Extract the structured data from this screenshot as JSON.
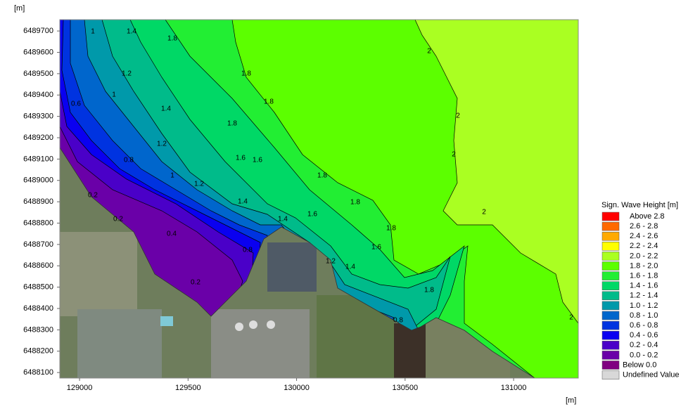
{
  "map": {
    "x_unit": "[m]",
    "y_unit": "[m]",
    "xlim": [
      128909,
      131298
    ],
    "ylim": [
      6488074,
      6489753
    ],
    "xticks": [
      129000,
      129500,
      130000,
      130500,
      131000
    ],
    "yticks": [
      6488100,
      6488200,
      6488300,
      6488400,
      6488500,
      6488600,
      6488700,
      6488800,
      6488900,
      6489000,
      6489100,
      6489200,
      6489300,
      6489400,
      6489500,
      6489600,
      6489700
    ],
    "contour_labels": [
      1,
      1.4,
      1.8,
      1.2,
      1,
      1.4,
      0.6,
      1.2,
      1.8,
      1.8,
      0.8,
      1,
      1.2,
      1.6,
      0.2,
      1.8,
      1.6,
      0.2,
      1.4,
      1.4,
      0.4,
      1.6,
      1.8,
      0.8,
      1.2,
      1.4,
      1.8,
      0.2,
      1.6,
      0.8,
      1.8,
      1.8,
      2,
      2,
      2,
      2,
      2
    ]
  },
  "legend": {
    "title": "Sign. Wave Height [m]",
    "entries": [
      {
        "label": "Above 2.8",
        "color": "#ff0000"
      },
      {
        "label": "2.6 - 2.8",
        "color": "#ff6a00"
      },
      {
        "label": "2.4 - 2.6",
        "color": "#ffaa00"
      },
      {
        "label": "2.2 - 2.4",
        "color": "#ffff00"
      },
      {
        "label": "2.0 - 2.2",
        "color": "#aaff22"
      },
      {
        "label": "1.8 - 2.0",
        "color": "#5cff00"
      },
      {
        "label": "1.6 - 1.8",
        "color": "#22ee33"
      },
      {
        "label": "1.4 - 1.6",
        "color": "#00d866"
      },
      {
        "label": "1.2 - 1.4",
        "color": "#00bb8a"
      },
      {
        "label": "1.0 - 1.2",
        "color": "#0099aa"
      },
      {
        "label": "0.8 - 1.0",
        "color": "#0066cc"
      },
      {
        "label": "0.6 - 0.8",
        "color": "#0033e0"
      },
      {
        "label": "0.4 - 0.6",
        "color": "#0a00f0"
      },
      {
        "label": "0.2 - 0.4",
        "color": "#4a00c8"
      },
      {
        "label": "0.0 - 0.2",
        "color": "#6a00a8"
      },
      {
        "label": "Below 0.0",
        "color": "#800080"
      },
      {
        "label": "Undefined Value",
        "color": "#d8d8d8"
      }
    ]
  }
}
